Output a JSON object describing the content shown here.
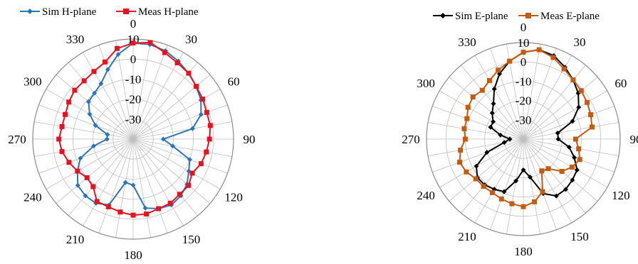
{
  "chart_data": [
    {
      "type": "polar-line",
      "r_range": [
        -40,
        10
      ],
      "r_ticks": [
        10,
        0,
        -10,
        -20,
        -30
      ],
      "angle_ticks": [
        0,
        30,
        60,
        90,
        120,
        150,
        180,
        210,
        240,
        270,
        300,
        330
      ],
      "angle_direction": "clockwise",
      "grid": true,
      "legend_position": "top",
      "colors": {
        "Sim H-plane": "#2e75b6",
        "Meas H-plane": "#e8121f"
      },
      "markers": {
        "Sim H-plane": "diamond",
        "Meas H-plane": "square"
      },
      "series": [
        {
          "name": "Sim H-plane",
          "angles": [
            0,
            10,
            20,
            30,
            40,
            50,
            60,
            70,
            80,
            90,
            100,
            110,
            120,
            130,
            140,
            150,
            160,
            170,
            180,
            190,
            200,
            210,
            220,
            230,
            240,
            250,
            260,
            270,
            280,
            290,
            300,
            310,
            320,
            330,
            340,
            350
          ],
          "values": [
            8,
            8,
            7,
            5,
            3,
            1,
            -1,
            -4,
            -10,
            -25,
            -20,
            -10,
            -8,
            -5,
            -3,
            -2,
            -3,
            -5,
            -17,
            -18,
            -5,
            -3,
            -3,
            -4,
            -8,
            -12,
            -20,
            -27,
            -27,
            -20,
            -15,
            -11,
            -10,
            -8,
            -3,
            3
          ]
        },
        {
          "name": "Meas H-plane",
          "angles": [
            0,
            10,
            20,
            30,
            40,
            50,
            60,
            70,
            80,
            90,
            100,
            110,
            120,
            130,
            140,
            150,
            160,
            170,
            180,
            190,
            200,
            210,
            220,
            230,
            240,
            250,
            260,
            270,
            280,
            290,
            300,
            310,
            320,
            330,
            340,
            350
          ],
          "values": [
            8,
            9,
            6,
            4,
            3,
            1,
            0,
            -1,
            -1,
            -2,
            -3,
            -4,
            -6,
            -4,
            -4,
            -3,
            -3,
            -2,
            -2,
            -3,
            -4,
            -4,
            -9,
            -10,
            -8,
            -6,
            -4,
            -3,
            -4,
            -4,
            -3,
            -2,
            -2,
            -1,
            1,
            6
          ]
        }
      ]
    },
    {
      "type": "polar-line",
      "r_range": [
        -40,
        10
      ],
      "r_ticks": [
        10,
        0,
        -10,
        -20,
        -30
      ],
      "angle_ticks": [
        0,
        30,
        60,
        90,
        120,
        150,
        180,
        210,
        240,
        270,
        300,
        330
      ],
      "angle_direction": "clockwise",
      "grid": true,
      "legend_position": "top",
      "colors": {
        "Sim E-plane": "#000000",
        "Meas E-plane": "#c55a11"
      },
      "markers": {
        "Sim E-plane": "diamond",
        "Meas E-plane": "square"
      },
      "series": [
        {
          "name": "Sim E-plane",
          "angles": [
            0,
            10,
            20,
            30,
            40,
            50,
            60,
            70,
            80,
            90,
            100,
            110,
            120,
            130,
            140,
            150,
            160,
            170,
            180,
            190,
            200,
            210,
            220,
            230,
            240,
            250,
            260,
            270,
            280,
            290,
            300,
            310,
            320,
            330,
            340,
            350
          ],
          "values": [
            5,
            7,
            6,
            3,
            0,
            -3,
            -7,
            -13,
            -22,
            -22,
            -16,
            -12,
            -8,
            -7,
            -6,
            -6,
            -10,
            -20,
            -24,
            -18,
            -11,
            -10,
            -9,
            -9,
            -12,
            -20,
            -30,
            -33,
            -28,
            -22,
            -22,
            -19,
            -16,
            -10,
            -4,
            1
          ]
        },
        {
          "name": "Meas E-plane",
          "angles": [
            0,
            10,
            20,
            30,
            40,
            50,
            60,
            70,
            80,
            90,
            100,
            110,
            120,
            130,
            140,
            150,
            160,
            170,
            180,
            190,
            200,
            210,
            220,
            230,
            240,
            250,
            260,
            270,
            280,
            290,
            300,
            310,
            320,
            330,
            340,
            350
          ],
          "values": [
            5,
            7,
            5,
            2,
            0,
            -1,
            -2,
            -3,
            -4,
            -13,
            -11,
            -9,
            -11,
            -14,
            -20,
            -21,
            -11,
            -7,
            -5,
            -6,
            -7,
            -8,
            -8,
            -8,
            -6,
            -5,
            -7,
            -10,
            -9,
            -9,
            -7,
            -6,
            -7,
            -5,
            -2,
            1
          ]
        }
      ]
    }
  ]
}
